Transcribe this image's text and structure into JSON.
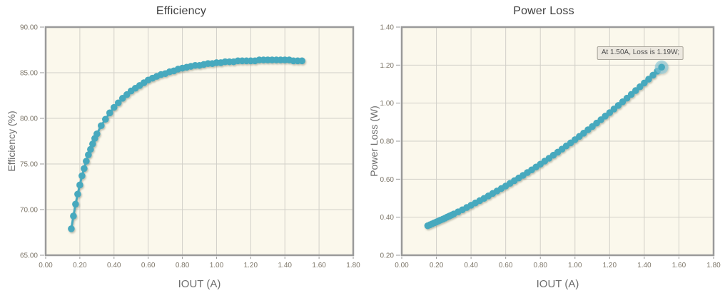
{
  "style": {
    "page_bg": "#ffffff",
    "plot_bg": "#fbf8ec",
    "grid_color": "#d2d0c9",
    "frame_color": "#9a9a9a",
    "series_color": "#46a9be",
    "halo_color": "#82c5d5",
    "title_color": "#3d3d3d",
    "tick_label_color": "#7d7669",
    "axis_title_color": "#6e6e6e",
    "tooltip_bg": "#ece8df",
    "tooltip_border": "#a9a59b",
    "tooltip_text": "#4f4f4f"
  },
  "chart_data": [
    {
      "type": "scatter",
      "title": "Efficiency",
      "xlabel": "IOUT (A)",
      "ylabel": "Efficiency (%)",
      "xlim": [
        0,
        1.8
      ],
      "ylim": [
        65,
        90
      ],
      "xticks": [
        0,
        0.2,
        0.4,
        0.6,
        0.8,
        1.0,
        1.2,
        1.4,
        1.6,
        1.8
      ],
      "yticks": [
        65,
        70,
        75,
        80,
        85,
        90
      ],
      "tick_decimals": 2,
      "grid": true,
      "legend": "none",
      "x": [
        0.15,
        0.1625,
        0.175,
        0.1875,
        0.2,
        0.2125,
        0.225,
        0.2375,
        0.25,
        0.2625,
        0.275,
        0.2875,
        0.3,
        0.325,
        0.35,
        0.375,
        0.4,
        0.425,
        0.45,
        0.475,
        0.5,
        0.525,
        0.55,
        0.575,
        0.6,
        0.625,
        0.65,
        0.675,
        0.7,
        0.725,
        0.75,
        0.775,
        0.8,
        0.825,
        0.85,
        0.875,
        0.9,
        0.925,
        0.95,
        0.975,
        1.0,
        1.025,
        1.05,
        1.075,
        1.1,
        1.125,
        1.15,
        1.175,
        1.2,
        1.225,
        1.25,
        1.275,
        1.3,
        1.325,
        1.35,
        1.375,
        1.4,
        1.425,
        1.45,
        1.475,
        1.5
      ],
      "y": [
        67.9,
        69.3,
        70.6,
        71.7,
        72.7,
        73.7,
        74.5,
        75.3,
        76.0,
        76.6,
        77.2,
        77.8,
        78.3,
        79.2,
        79.9,
        80.6,
        81.2,
        81.7,
        82.2,
        82.6,
        83.0,
        83.3,
        83.6,
        83.9,
        84.2,
        84.4,
        84.6,
        84.8,
        84.9,
        85.1,
        85.2,
        85.4,
        85.5,
        85.6,
        85.7,
        85.8,
        85.8,
        85.9,
        86.0,
        86.0,
        86.1,
        86.1,
        86.2,
        86.2,
        86.2,
        86.3,
        86.3,
        86.3,
        86.3,
        86.3,
        86.4,
        86.4,
        86.4,
        86.4,
        86.4,
        86.4,
        86.4,
        86.4,
        86.3,
        86.3,
        86.3
      ]
    },
    {
      "type": "scatter",
      "title": "Power Loss",
      "xlabel": "IOUT (A)",
      "ylabel": "Power Loss (W)",
      "xlim": [
        0,
        1.8
      ],
      "ylim": [
        0.2,
        1.4
      ],
      "xticks": [
        0,
        0.2,
        0.4,
        0.6,
        0.8,
        1.0,
        1.2,
        1.4,
        1.6,
        1.8
      ],
      "yticks": [
        0.2,
        0.4,
        0.6,
        0.8,
        1.0,
        1.2,
        1.4
      ],
      "tick_decimals": 2,
      "grid": true,
      "legend": "none",
      "highlight_last": true,
      "annotation": {
        "text": "At 1.50A, Loss is 1.19W;",
        "at_x": 1.5,
        "at_y": 1.19
      },
      "x": [
        0.15,
        0.1625,
        0.175,
        0.1875,
        0.2,
        0.2125,
        0.225,
        0.2375,
        0.25,
        0.2625,
        0.275,
        0.2875,
        0.3,
        0.325,
        0.35,
        0.375,
        0.4,
        0.425,
        0.45,
        0.475,
        0.5,
        0.525,
        0.55,
        0.575,
        0.6,
        0.625,
        0.65,
        0.675,
        0.7,
        0.725,
        0.75,
        0.775,
        0.8,
        0.825,
        0.85,
        0.875,
        0.9,
        0.925,
        0.95,
        0.975,
        1.0,
        1.025,
        1.05,
        1.075,
        1.1,
        1.125,
        1.15,
        1.175,
        1.2,
        1.225,
        1.25,
        1.275,
        1.3,
        1.325,
        1.35,
        1.375,
        1.4,
        1.425,
        1.45,
        1.475,
        1.5
      ],
      "y": [
        0.355,
        0.36,
        0.365,
        0.37,
        0.375,
        0.38,
        0.385,
        0.39,
        0.395,
        0.401,
        0.406,
        0.411,
        0.417,
        0.428,
        0.439,
        0.451,
        0.463,
        0.475,
        0.487,
        0.499,
        0.512,
        0.525,
        0.538,
        0.551,
        0.564,
        0.578,
        0.592,
        0.606,
        0.62,
        0.635,
        0.649,
        0.664,
        0.679,
        0.695,
        0.71,
        0.726,
        0.742,
        0.758,
        0.775,
        0.791,
        0.808,
        0.825,
        0.842,
        0.86,
        0.877,
        0.895,
        0.913,
        0.932,
        0.95,
        0.969,
        0.988,
        1.007,
        1.026,
        1.046,
        1.066,
        1.086,
        1.106,
        1.126,
        1.147,
        1.168,
        1.189
      ]
    }
  ]
}
